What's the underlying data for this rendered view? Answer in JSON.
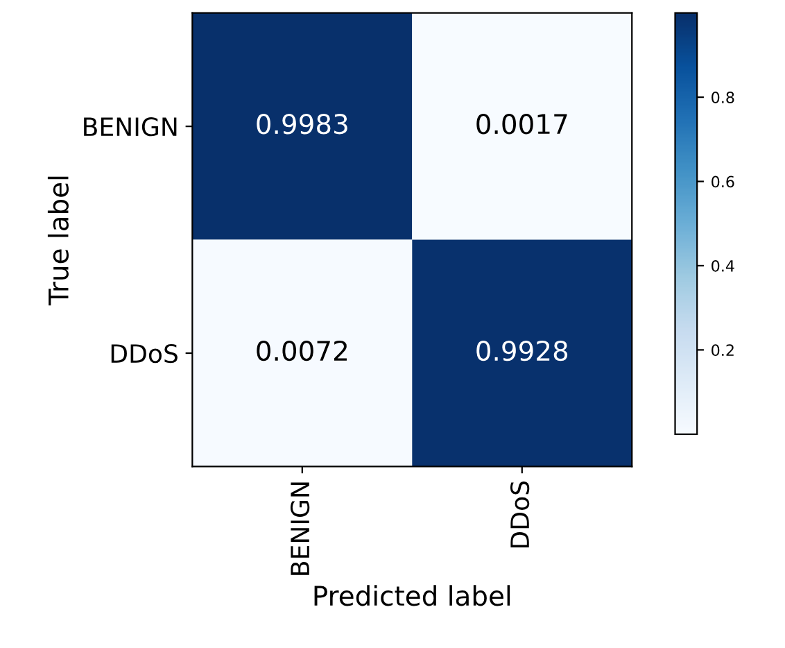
{
  "chart_data": {
    "type": "heatmap",
    "xlabel": "Predicted label",
    "ylabel": "True label",
    "categories": [
      "BENIGN",
      "DDoS"
    ],
    "y_categories": [
      "BENIGN",
      "DDoS"
    ],
    "cells": [
      [
        0.9983,
        0.0017
      ],
      [
        0.0072,
        0.9928
      ]
    ],
    "data_labels": true,
    "clim": [
      0,
      1
    ],
    "cticks": [
      0.2,
      0.4,
      0.6,
      0.8
    ]
  }
}
